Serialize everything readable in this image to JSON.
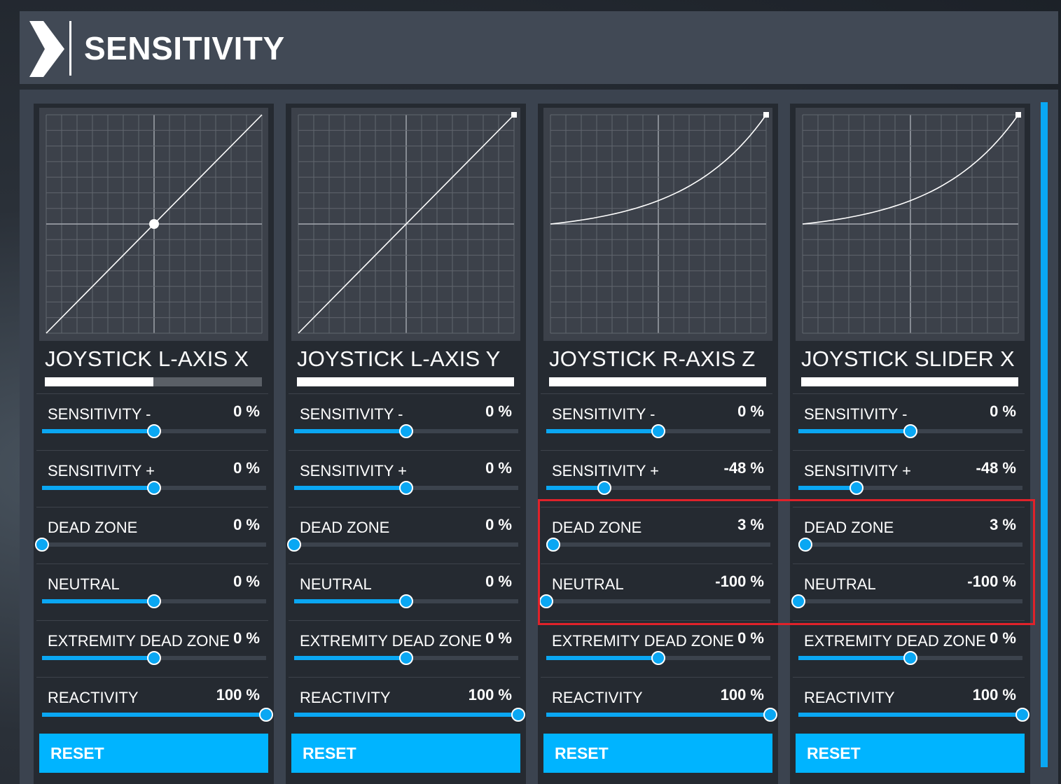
{
  "header": {
    "title": "SENSITIVITY"
  },
  "panels": [
    {
      "axis": "JOYSTICK L-AXIS X",
      "input_fraction": 0.5,
      "curve": "linear",
      "settings": [
        {
          "label": "SENSITIVITY -",
          "value": "0 %",
          "level": 0.5
        },
        {
          "label": "SENSITIVITY +",
          "value": "0 %",
          "level": 0.5
        },
        {
          "label": "DEAD ZONE",
          "value": "0 %",
          "level": 0.0
        },
        {
          "label": "NEUTRAL",
          "value": "0 %",
          "level": 0.5
        },
        {
          "label": "EXTREMITY DEAD ZONE",
          "value": "0 %",
          "level": 0.5
        },
        {
          "label": "REACTIVITY",
          "value": "100 %",
          "level": 1.0
        }
      ],
      "reset_label": "RESET"
    },
    {
      "axis": "JOYSTICK L-AXIS Y",
      "input_fraction": 1.0,
      "curve": "linear",
      "settings": [
        {
          "label": "SENSITIVITY -",
          "value": "0 %",
          "level": 0.5
        },
        {
          "label": "SENSITIVITY +",
          "value": "0 %",
          "level": 0.5
        },
        {
          "label": "DEAD ZONE",
          "value": "0 %",
          "level": 0.0
        },
        {
          "label": "NEUTRAL",
          "value": "0 %",
          "level": 0.5
        },
        {
          "label": "EXTREMITY DEAD ZONE",
          "value": "0 %",
          "level": 0.5
        },
        {
          "label": "REACTIVITY",
          "value": "100 %",
          "level": 1.0
        }
      ],
      "reset_label": "RESET"
    },
    {
      "axis": "JOYSTICK R-AXIS Z",
      "input_fraction": 1.0,
      "curve": "exponential",
      "settings": [
        {
          "label": "SENSITIVITY -",
          "value": "0 %",
          "level": 0.5
        },
        {
          "label": "SENSITIVITY +",
          "value": "-48 %",
          "level": 0.26
        },
        {
          "label": "DEAD ZONE",
          "value": "3 %",
          "level": 0.03
        },
        {
          "label": "NEUTRAL",
          "value": "-100 %",
          "level": 0.0
        },
        {
          "label": "EXTREMITY DEAD ZONE",
          "value": "0 %",
          "level": 0.5
        },
        {
          "label": "REACTIVITY",
          "value": "100 %",
          "level": 1.0
        }
      ],
      "reset_label": "RESET"
    },
    {
      "axis": "JOYSTICK SLIDER X",
      "input_fraction": 1.0,
      "curve": "exponential",
      "settings": [
        {
          "label": "SENSITIVITY -",
          "value": "0 %",
          "level": 0.5
        },
        {
          "label": "SENSITIVITY +",
          "value": "-48 %",
          "level": 0.26
        },
        {
          "label": "DEAD ZONE",
          "value": "3 %",
          "level": 0.03
        },
        {
          "label": "NEUTRAL",
          "value": "-100 %",
          "level": 0.0
        },
        {
          "label": "EXTREMITY DEAD ZONE",
          "value": "0 %",
          "level": 0.5
        },
        {
          "label": "REACTIVITY",
          "value": "100 %",
          "level": 1.0
        }
      ],
      "reset_label": "RESET"
    }
  ]
}
